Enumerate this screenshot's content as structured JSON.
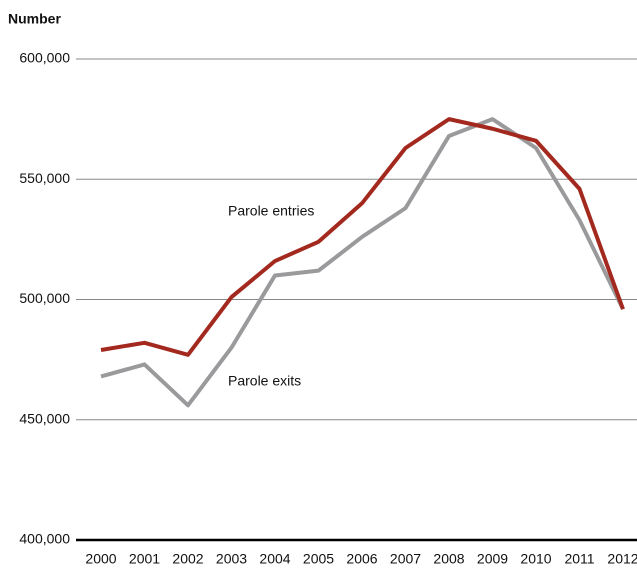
{
  "chart_data": {
    "type": "line",
    "y_axis_label": "Number",
    "categories": [
      "2000",
      "2001",
      "2002",
      "2003",
      "2004",
      "2005",
      "2006",
      "2007",
      "2008",
      "2009",
      "2010",
      "2011",
      "2012"
    ],
    "series": [
      {
        "name": "Parole exits",
        "color": "#9a9a9c",
        "values": [
          468000,
          473000,
          456000,
          480000,
          510000,
          512000,
          526000,
          538000,
          568000,
          575000,
          563000,
          533000,
          496000
        ]
      },
      {
        "name": "Parole entries",
        "color": "#a3291f",
        "values": [
          479000,
          482000,
          477000,
          501000,
          516000,
          524000,
          540000,
          563000,
          575000,
          571000,
          566000,
          546000,
          496000
        ]
      }
    ],
    "ylim": [
      400000,
      600000
    ],
    "yticks": [
      {
        "value": 400000,
        "label": "400,000"
      },
      {
        "value": 450000,
        "label": "450,000"
      },
      {
        "value": 500000,
        "label": "500,000"
      },
      {
        "value": 550000,
        "label": "550,000"
      },
      {
        "value": 600000,
        "label": "600,000"
      }
    ],
    "grid": true
  }
}
